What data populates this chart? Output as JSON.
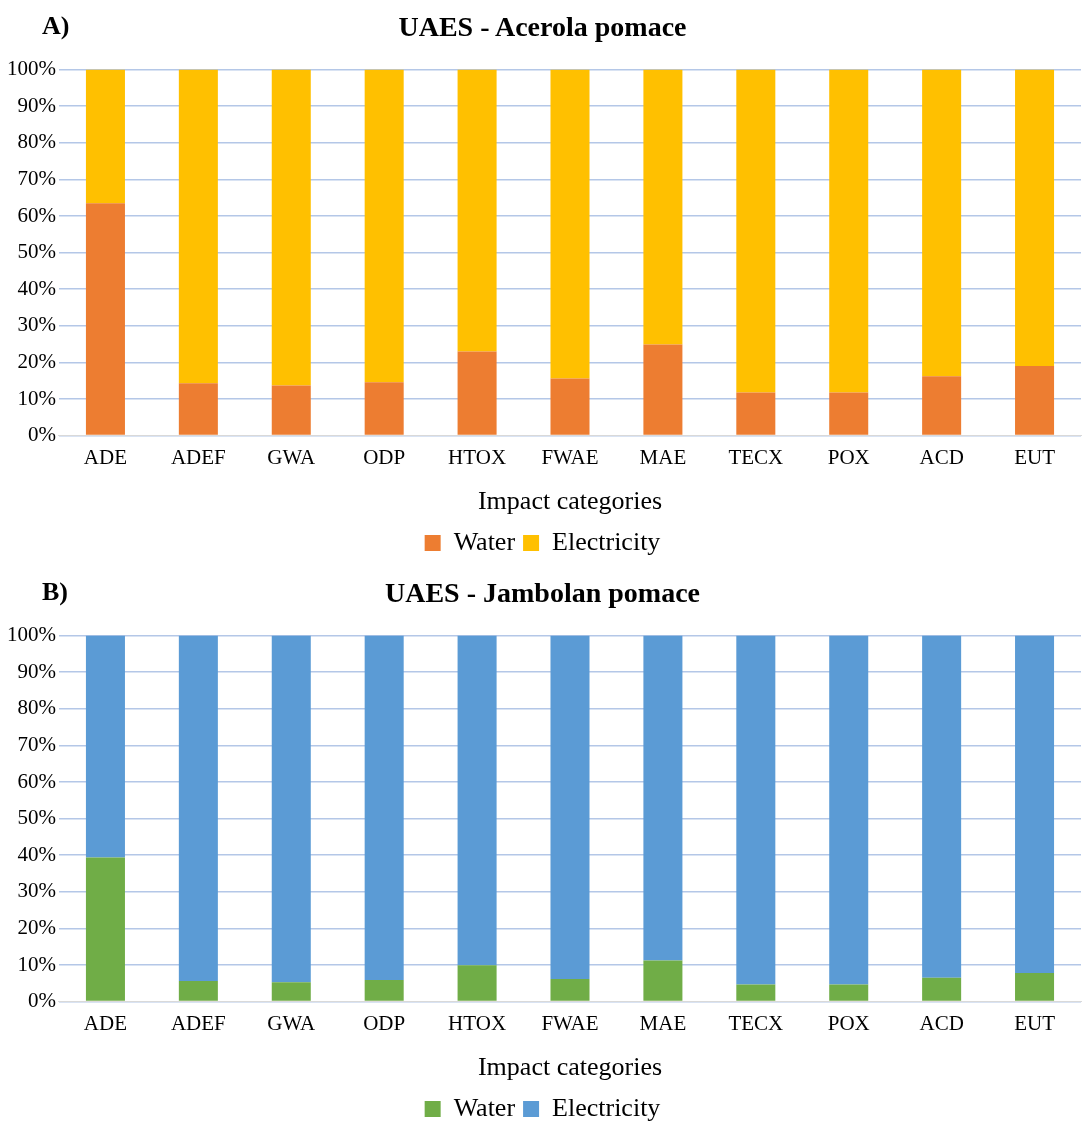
{
  "chart_data": [
    {
      "type": "bar",
      "title": "UAES - Acerola pomace",
      "annotations": [
        "A)"
      ],
      "xlabel": "Impact categories",
      "categories": [
        "ADE",
        "ADEF",
        "GWA",
        "ODP",
        "HTOX",
        "FWAE",
        "MAE",
        "TECX",
        "POX",
        "ACD",
        "EUT"
      ],
      "stacked": true,
      "grid": "y",
      "legend": "bottom",
      "ylim": [
        0,
        100
      ],
      "yticks": [
        {
          "value": 0,
          "label": "0%"
        },
        {
          "value": 10,
          "label": "10%"
        },
        {
          "value": 20,
          "label": "20%"
        },
        {
          "value": 30,
          "label": "30%"
        },
        {
          "value": 40,
          "label": "40%"
        },
        {
          "value": 50,
          "label": "50%"
        },
        {
          "value": 60,
          "label": "60%"
        },
        {
          "value": 70,
          "label": "70%"
        },
        {
          "value": 80,
          "label": "80%"
        },
        {
          "value": 90,
          "label": "90%"
        },
        {
          "value": 100,
          "label": "100%"
        }
      ],
      "series": [
        {
          "name": "Water",
          "color": "#ed7d31",
          "values": [
            63.5,
            14.3,
            13.7,
            14.6,
            23,
            15.6,
            24.9,
            11.8,
            11.8,
            16.2,
            19
          ]
        },
        {
          "name": "Electricity",
          "color": "#ffc000",
          "values": [
            36.5,
            85.7,
            86.3,
            85.4,
            77,
            84.4,
            75.1,
            88.2,
            88.2,
            83.8,
            81
          ]
        }
      ]
    },
    {
      "type": "bar",
      "title": "UAES - Jambolan pomace",
      "annotations": [
        "B)"
      ],
      "xlabel": "Impact categories",
      "categories": [
        "ADE",
        "ADEF",
        "GWA",
        "ODP",
        "HTOX",
        "FWAE",
        "MAE",
        "TECX",
        "POX",
        "ACD",
        "EUT"
      ],
      "stacked": true,
      "grid": "y",
      "legend": "bottom",
      "ylim": [
        0,
        100
      ],
      "yticks": [
        {
          "value": 0,
          "label": "0%"
        },
        {
          "value": 10,
          "label": "10%"
        },
        {
          "value": 20,
          "label": "20%"
        },
        {
          "value": 30,
          "label": "30%"
        },
        {
          "value": 40,
          "label": "40%"
        },
        {
          "value": 50,
          "label": "50%"
        },
        {
          "value": 60,
          "label": "60%"
        },
        {
          "value": 70,
          "label": "70%"
        },
        {
          "value": 80,
          "label": "80%"
        },
        {
          "value": 90,
          "label": "90%"
        },
        {
          "value": 100,
          "label": "100%"
        }
      ],
      "series": [
        {
          "name": "Water",
          "color": "#70ad47",
          "values": [
            39.4,
            5.6,
            5.3,
            5.9,
            9.9,
            6.2,
            11.2,
            4.7,
            4.7,
            6.5,
            7.8
          ]
        },
        {
          "name": "Electricity",
          "color": "#5b9bd5",
          "values": [
            60.6,
            94.4,
            94.7,
            94.1,
            90.1,
            93.8,
            88.8,
            95.3,
            95.3,
            93.5,
            92.2
          ]
        }
      ]
    }
  ]
}
